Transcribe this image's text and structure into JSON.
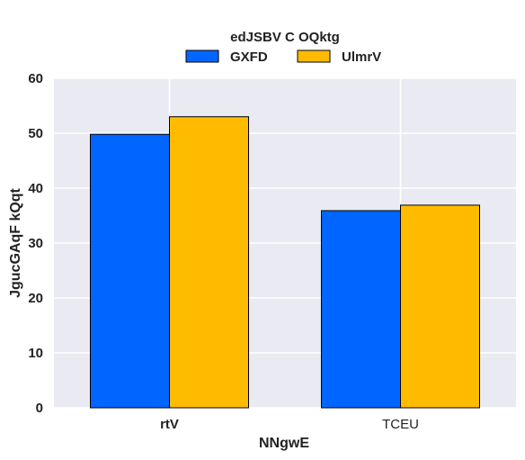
{
  "chart_data": {
    "type": "bar",
    "categories": [
      "rtV",
      "TCEU"
    ],
    "series": [
      {
        "name": "GXFD",
        "values": [
          49.8,
          35.9
        ],
        "color": "#0066ff"
      },
      {
        "name": "UlmrV",
        "values": [
          53.0,
          36.9
        ],
        "color": "#ffbb00"
      }
    ],
    "legend_title": "edJSBV C OQktg",
    "legend_position": "top-center",
    "xlabel": "NNgwE",
    "ylabel": "JgucGAqF kQqt",
    "ylim": [
      0,
      60
    ],
    "yticks": [
      0,
      10,
      20,
      30,
      40,
      50,
      60
    ],
    "grid": true,
    "background_color": "#eaeaf2",
    "grid_color": "#ffffff"
  }
}
